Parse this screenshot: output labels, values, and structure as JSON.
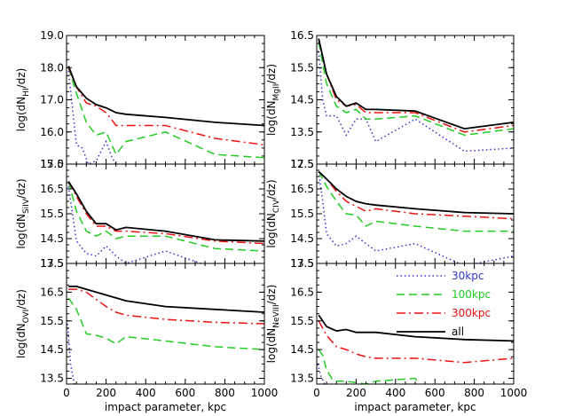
{
  "chart_data": {
    "type": "line",
    "xlabel": "impact parameter, kpc",
    "xlim": [
      0,
      1000
    ],
    "xticks": [
      0,
      200,
      400,
      600,
      800,
      1000
    ],
    "legend": {
      "placement": "inside bottom-right panel, upper right",
      "entries": [
        {
          "label": "30kpc",
          "color": "#3333cc",
          "style": "dotted"
        },
        {
          "label": "100kpc",
          "color": "#22cc22",
          "style": "dashed"
        },
        {
          "label": "300kpc",
          "color": "#ee1111",
          "style": "dashdot"
        },
        {
          "label": "all",
          "color": "#000000",
          "style": "solid"
        }
      ]
    },
    "panels": [
      {
        "ylabel_pre": "log(dN",
        "ylabel_sub": "HI",
        "ylabel_post": "/dz)",
        "ylim": [
          15.0,
          19.0
        ],
        "yticks": [
          "15.0",
          "16.0",
          "17.0",
          "18.0",
          "19.0"
        ],
        "series": [
          {
            "key": "30kpc",
            "x": [
              10,
              50,
              80,
              110,
              150,
              200,
              230,
              250
            ],
            "y": [
              17.9,
              15.6,
              15.5,
              15.0,
              15.1,
              15.7,
              15.2,
              15.0
            ]
          },
          {
            "key": "100kpc",
            "x": [
              10,
              50,
              100,
              150,
              200,
              250,
              300,
              500,
              750,
              1000
            ],
            "y": [
              18.0,
              17.2,
              16.3,
              15.9,
              16.0,
              15.3,
              15.7,
              16.0,
              15.3,
              15.2
            ]
          },
          {
            "key": "300kpc",
            "x": [
              10,
              50,
              100,
              150,
              200,
              250,
              300,
              500,
              750,
              1000
            ],
            "y": [
              18.0,
              17.4,
              16.9,
              16.8,
              16.6,
              16.2,
              16.2,
              16.2,
              15.8,
              15.6
            ]
          },
          {
            "key": "all",
            "x": [
              10,
              50,
              100,
              150,
              200,
              250,
              300,
              500,
              750,
              1000
            ],
            "y": [
              18.05,
              17.4,
              17.05,
              16.85,
              16.75,
              16.6,
              16.55,
              16.45,
              16.3,
              16.2
            ]
          }
        ]
      },
      {
        "ylabel_pre": "log(dN",
        "ylabel_sub": "MgII",
        "ylabel_post": "/dz)",
        "ylim": [
          12.5,
          16.5
        ],
        "yticks": [
          "12.5",
          "13.5",
          "14.5",
          "15.5",
          "16.5"
        ],
        "series": [
          {
            "key": "30kpc",
            "x": [
              10,
              30,
              50,
              100,
              150,
              200,
              250,
              300,
              500,
              750,
              1000
            ],
            "y": [
              16.0,
              14.5,
              14.0,
              14.0,
              13.4,
              13.9,
              13.9,
              13.2,
              13.9,
              12.9,
              13.0
            ]
          },
          {
            "key": "100kpc",
            "x": [
              10,
              50,
              100,
              150,
              200,
              250,
              300,
              500,
              750,
              1000
            ],
            "y": [
              16.3,
              15.0,
              14.3,
              14.1,
              14.2,
              13.9,
              13.9,
              14.0,
              13.4,
              13.6
            ]
          },
          {
            "key": "300kpc",
            "x": [
              10,
              50,
              100,
              150,
              200,
              250,
              300,
              500,
              750,
              1000
            ],
            "y": [
              16.4,
              15.3,
              14.5,
              14.3,
              14.35,
              14.1,
              14.1,
              14.1,
              13.5,
              13.7
            ]
          },
          {
            "key": "all",
            "x": [
              10,
              50,
              100,
              150,
              200,
              250,
              300,
              500,
              750,
              1000
            ],
            "y": [
              16.4,
              15.3,
              14.6,
              14.3,
              14.4,
              14.2,
              14.2,
              14.15,
              13.6,
              13.8
            ]
          }
        ]
      },
      {
        "ylabel_pre": "log(dN",
        "ylabel_sub": "SiIV",
        "ylabel_post": "/dz)",
        "ylim": [
          13.5,
          17.5
        ],
        "yticks": [
          "13.5",
          "14.5",
          "15.5",
          "16.5",
          "17.5"
        ],
        "series": [
          {
            "key": "30kpc",
            "x": [
              10,
              50,
              100,
              150,
              200,
              250,
              300,
              500,
              750
            ],
            "y": [
              16.6,
              14.4,
              13.9,
              13.8,
              14.2,
              13.8,
              13.5,
              14.0,
              13.3
            ]
          },
          {
            "key": "100kpc",
            "x": [
              10,
              50,
              100,
              150,
              200,
              250,
              300,
              500,
              750,
              1000
            ],
            "y": [
              16.8,
              15.6,
              14.8,
              14.6,
              14.8,
              14.5,
              14.6,
              14.6,
              14.1,
              14.0
            ]
          },
          {
            "key": "300kpc",
            "x": [
              10,
              50,
              100,
              150,
              200,
              250,
              300,
              500,
              750,
              1000
            ],
            "y": [
              16.8,
              16.2,
              15.5,
              15.0,
              15.0,
              14.8,
              14.8,
              14.7,
              14.4,
              14.3
            ]
          },
          {
            "key": "all",
            "x": [
              10,
              50,
              100,
              150,
              200,
              250,
              300,
              500,
              750,
              1000
            ],
            "y": [
              16.8,
              16.3,
              15.6,
              15.1,
              15.1,
              14.85,
              14.95,
              14.8,
              14.45,
              14.4
            ]
          }
        ]
      },
      {
        "ylabel_pre": "log(dN",
        "ylabel_sub": "CIV",
        "ylabel_post": "/dz)",
        "ylim": [
          13.5,
          17.5
        ],
        "yticks": [
          "13.5",
          "14.5",
          "15.5",
          "16.5",
          "17.5"
        ],
        "series": [
          {
            "key": "30kpc",
            "x": [
              10,
              30,
              50,
              100,
              150,
              200,
              250,
              300,
              500,
              750,
              1000
            ],
            "y": [
              17.2,
              16.0,
              14.7,
              14.2,
              14.3,
              14.6,
              14.3,
              14.0,
              14.3,
              13.4,
              13.8
            ]
          },
          {
            "key": "100kpc",
            "x": [
              10,
              50,
              100,
              150,
              200,
              250,
              300,
              500,
              750,
              1000
            ],
            "y": [
              17.2,
              16.6,
              16.0,
              15.5,
              15.45,
              15.0,
              15.2,
              15.0,
              14.8,
              14.8
            ]
          },
          {
            "key": "300kpc",
            "x": [
              10,
              50,
              100,
              150,
              200,
              250,
              300,
              500,
              750,
              1000
            ],
            "y": [
              17.2,
              16.9,
              16.4,
              16.0,
              15.8,
              15.6,
              15.7,
              15.5,
              15.4,
              15.3
            ]
          },
          {
            "key": "all",
            "x": [
              10,
              50,
              100,
              150,
              200,
              250,
              300,
              500,
              750,
              1000
            ],
            "y": [
              17.2,
              16.9,
              16.5,
              16.2,
              16.0,
              15.9,
              15.85,
              15.7,
              15.55,
              15.5
            ]
          }
        ]
      },
      {
        "ylabel_pre": "log(dN",
        "ylabel_sub": "OVI",
        "ylabel_post": "/dz)",
        "ylim": [
          13.3,
          17.5
        ],
        "yticks": [
          "13.5",
          "14.5",
          "15.5",
          "16.5",
          "17.5"
        ],
        "series": [
          {
            "key": "30kpc",
            "x": [
              5,
              20,
              40
            ],
            "y": [
              15.4,
              14.0,
              13.3
            ]
          },
          {
            "key": "100kpc",
            "x": [
              10,
              50,
              100,
              150,
              200,
              250,
              300,
              500,
              750,
              1000
            ],
            "y": [
              16.3,
              15.9,
              15.05,
              15.0,
              14.9,
              14.7,
              14.95,
              14.8,
              14.6,
              14.5
            ]
          },
          {
            "key": "300kpc",
            "x": [
              10,
              50,
              100,
              150,
              200,
              250,
              300,
              500,
              750,
              1000
            ],
            "y": [
              16.6,
              16.6,
              16.5,
              16.25,
              16.0,
              15.8,
              15.7,
              15.55,
              15.45,
              15.4
            ]
          },
          {
            "key": "all",
            "x": [
              10,
              50,
              100,
              150,
              200,
              250,
              300,
              500,
              750,
              1000
            ],
            "y": [
              16.7,
              16.7,
              16.6,
              16.5,
              16.4,
              16.3,
              16.2,
              16.0,
              15.9,
              15.8
            ]
          }
        ]
      },
      {
        "ylabel_pre": "log(dN",
        "ylabel_sub": "NeVIII",
        "ylabel_post": "/dz)",
        "ylim": [
          13.3,
          17.5
        ],
        "yticks": [
          "13.5",
          "14.5",
          "15.5",
          "16.5",
          "17.5"
        ],
        "series": [
          {
            "key": "30kpc",
            "x": [
              5,
              20,
              40
            ],
            "y": [
              14.0,
              13.6,
              13.3
            ]
          },
          {
            "key": "100kpc",
            "x": [
              10,
              30,
              50,
              80,
              100,
              150,
              250,
              300,
              500,
              520
            ],
            "y": [
              14.5,
              14.3,
              13.8,
              13.45,
              13.4,
              13.4,
              13.3,
              13.4,
              13.5,
              13.3
            ]
          },
          {
            "key": "300kpc",
            "x": [
              10,
              50,
              100,
              150,
              200,
              250,
              300,
              500,
              750,
              1000
            ],
            "y": [
              15.5,
              15.0,
              14.6,
              14.5,
              14.35,
              14.25,
              14.2,
              14.2,
              14.05,
              14.2
            ]
          },
          {
            "key": "all",
            "x": [
              10,
              50,
              100,
              150,
              200,
              250,
              300,
              500,
              750,
              1000
            ],
            "y": [
              15.7,
              15.3,
              15.15,
              15.2,
              15.1,
              15.1,
              15.1,
              14.95,
              14.85,
              14.8
            ]
          }
        ]
      }
    ]
  }
}
